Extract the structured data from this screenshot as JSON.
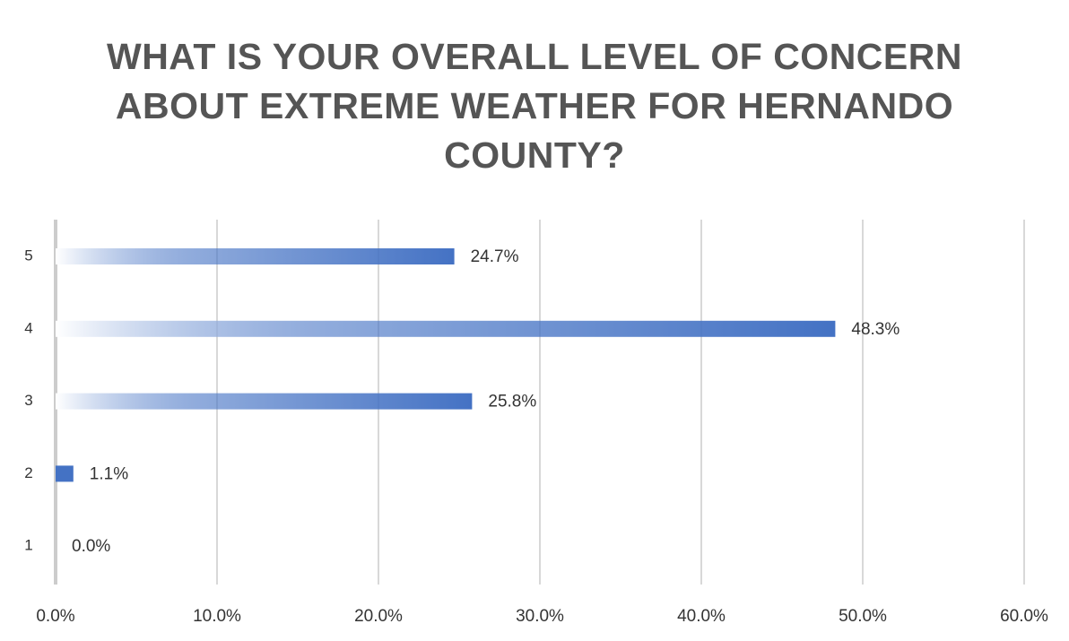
{
  "chart_data": {
    "type": "bar",
    "orientation": "horizontal",
    "title": "WHAT IS YOUR OVERALL LEVEL OF CONCERN ABOUT EXTREME WEATHER FOR HERNANDO COUNTY?",
    "categories": [
      "5",
      "4",
      "3",
      "2",
      "1"
    ],
    "values": [
      24.7,
      48.3,
      25.8,
      1.1,
      0.0
    ],
    "value_labels": [
      "24.7%",
      "48.3%",
      "25.8%",
      "1.1%",
      "0.0%"
    ],
    "color": "#4472c4",
    "xlim": [
      0,
      60
    ],
    "xticks": [
      {
        "value": 0,
        "label": "0.0%"
      },
      {
        "value": 10,
        "label": "10.0%"
      },
      {
        "value": 20,
        "label": "20.0%"
      },
      {
        "value": 30,
        "label": "30.0%"
      },
      {
        "value": 40,
        "label": "40.0%"
      },
      {
        "value": 50,
        "label": "50.0%"
      },
      {
        "value": 60,
        "label": "60.0%"
      }
    ],
    "grid": true
  }
}
